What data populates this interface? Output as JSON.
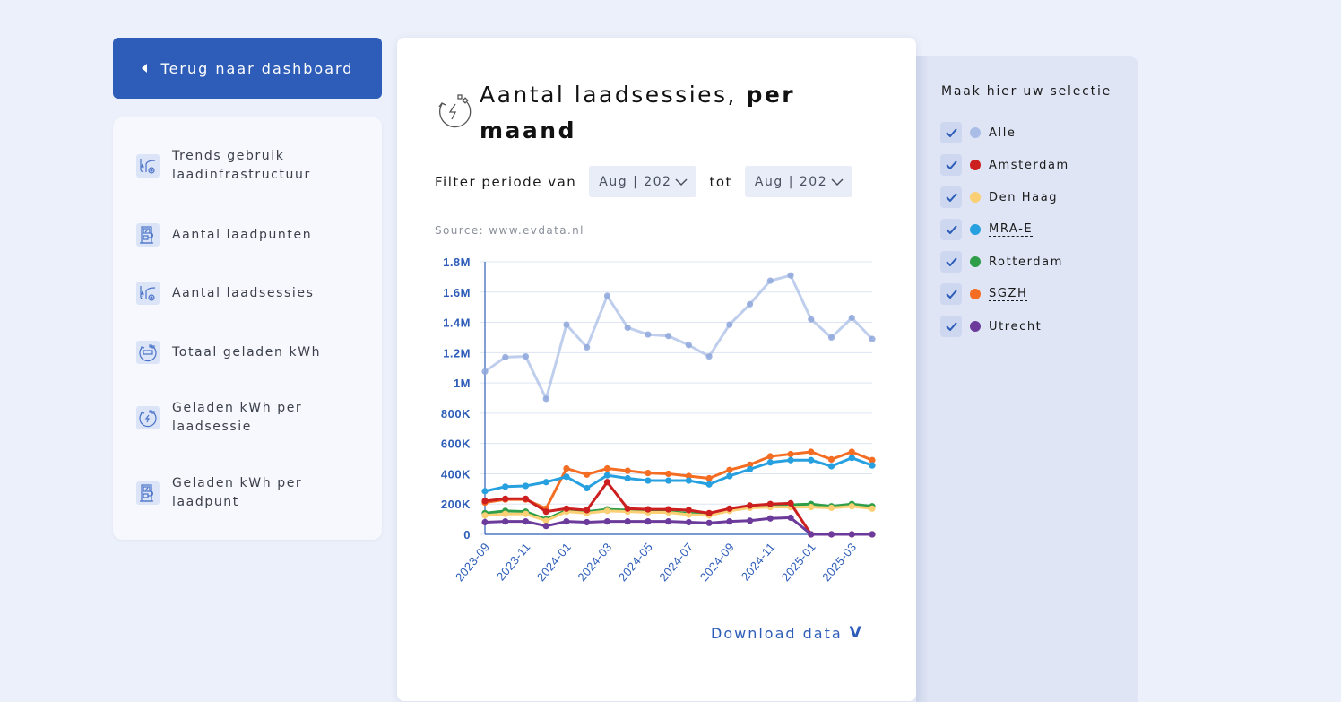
{
  "back_button": {
    "label": "Terug naar dashboard",
    "icon": "caret-left-icon"
  },
  "nav": {
    "items": [
      {
        "label": "Trends gebruik laadinfrastructuur",
        "icon": "ev-car-charging-icon"
      },
      {
        "label": "Aantal laadpunten",
        "icon": "charging-station-icon"
      },
      {
        "label": "Aantal laadsessies",
        "icon": "ev-car-charging-icon"
      },
      {
        "label": "Totaal geladen kWh",
        "icon": "battery-cycle-icon"
      },
      {
        "label": "Geladen kWh per laadsessie",
        "icon": "energy-cycle-icon"
      },
      {
        "label": "Geladen kWh per laadpunt",
        "icon": "charging-station-icon"
      }
    ]
  },
  "main": {
    "title_regular": "Aantal laadsessies,",
    "title_bold": "per maand",
    "title_icon": "energy-cycle-icon",
    "filter_label": "Filter periode van",
    "from_value": "Aug | 202",
    "to_label": "tot",
    "to_value": "Aug | 202",
    "source": "Source: www.evdata.nl",
    "download_label": "Download data",
    "download_icon": "chevron-down-icon"
  },
  "selection": {
    "title": "Maak hier uw selectie",
    "items": [
      {
        "label": "Alle",
        "checked": true,
        "color": "#a9bde6",
        "dashed": false
      },
      {
        "label": "Amsterdam",
        "checked": true,
        "color": "#cc1f1f",
        "dashed": false
      },
      {
        "label": "Den Haag",
        "checked": true,
        "color": "#fbd074",
        "dashed": false
      },
      {
        "label": "MRA-E",
        "checked": true,
        "color": "#27a0e0",
        "dashed": true
      },
      {
        "label": "Rotterdam",
        "checked": true,
        "color": "#2e9e48",
        "dashed": false
      },
      {
        "label": "SGZH",
        "checked": true,
        "color": "#f46d23",
        "dashed": true
      },
      {
        "label": "Utrecht",
        "checked": true,
        "color": "#6b3a9a",
        "dashed": false
      }
    ]
  },
  "chart_data": {
    "type": "line",
    "title": "Aantal laadsessies, per maand",
    "xlabel": "",
    "ylabel": "",
    "ylim": [
      0,
      1800000
    ],
    "y_ticks": [
      0,
      200000,
      400000,
      600000,
      800000,
      1000000,
      1200000,
      1400000,
      1600000,
      1800000
    ],
    "y_tick_labels": [
      "0",
      "200K",
      "400K",
      "600K",
      "800K",
      "1M",
      "1.2M",
      "1.4M",
      "1.6M",
      "1.8M"
    ],
    "x": [
      "2023-09",
      "2023-10",
      "2023-11",
      "2023-12",
      "2024-01",
      "2024-02",
      "2024-03",
      "2024-04",
      "2024-05",
      "2024-06",
      "2024-07",
      "2024-08",
      "2024-09",
      "2024-10",
      "2024-11",
      "2024-12",
      "2025-01",
      "2025-02",
      "2025-03",
      "2025-04"
    ],
    "x_tick_labels": [
      "2023-09",
      "2023-11",
      "2024-01",
      "2024-03",
      "2024-05",
      "2024-07",
      "2024-09",
      "2024-11",
      "2025-01",
      "2025-03"
    ],
    "grid": true,
    "series": [
      {
        "name": "Alle",
        "color": "#a9bde6",
        "values": [
          1075000,
          1170000,
          1175000,
          895000,
          1385000,
          1235000,
          1575000,
          1365000,
          1320000,
          1310000,
          1250000,
          1175000,
          1385000,
          1520000,
          1675000,
          1710000,
          1420000,
          1300000,
          1430000,
          1290000
        ]
      },
      {
        "name": "SGZH",
        "color": "#f46d23",
        "values": [
          210000,
          230000,
          230000,
          170000,
          435000,
          395000,
          435000,
          420000,
          405000,
          400000,
          385000,
          370000,
          425000,
          460000,
          515000,
          530000,
          545000,
          495000,
          545000,
          490000
        ]
      },
      {
        "name": "MRA-E",
        "color": "#27a0e0",
        "values": [
          285000,
          315000,
          320000,
          345000,
          380000,
          305000,
          390000,
          370000,
          355000,
          355000,
          355000,
          330000,
          385000,
          430000,
          475000,
          490000,
          490000,
          450000,
          505000,
          455000
        ]
      },
      {
        "name": "Rotterdam",
        "color": "#2e9e48",
        "values": [
          140000,
          155000,
          150000,
          100000,
          160000,
          150000,
          165000,
          160000,
          155000,
          150000,
          140000,
          135000,
          160000,
          185000,
          195000,
          195000,
          200000,
          185000,
          200000,
          185000
        ]
      },
      {
        "name": "Den Haag",
        "color": "#fbd074",
        "values": [
          125000,
          135000,
          135000,
          90000,
          150000,
          140000,
          155000,
          150000,
          145000,
          145000,
          130000,
          125000,
          155000,
          175000,
          180000,
          180000,
          180000,
          175000,
          185000,
          170000
        ]
      },
      {
        "name": "Amsterdam",
        "color": "#cc1f1f",
        "values": [
          220000,
          235000,
          235000,
          150000,
          170000,
          160000,
          345000,
          170000,
          165000,
          165000,
          160000,
          140000,
          170000,
          190000,
          200000,
          205000,
          0,
          0,
          0,
          0
        ]
      },
      {
        "name": "Utrecht",
        "color": "#6b3a9a",
        "values": [
          80000,
          85000,
          85000,
          55000,
          85000,
          80000,
          85000,
          85000,
          85000,
          85000,
          80000,
          75000,
          85000,
          90000,
          105000,
          110000,
          0,
          0,
          0,
          0
        ]
      }
    ]
  }
}
